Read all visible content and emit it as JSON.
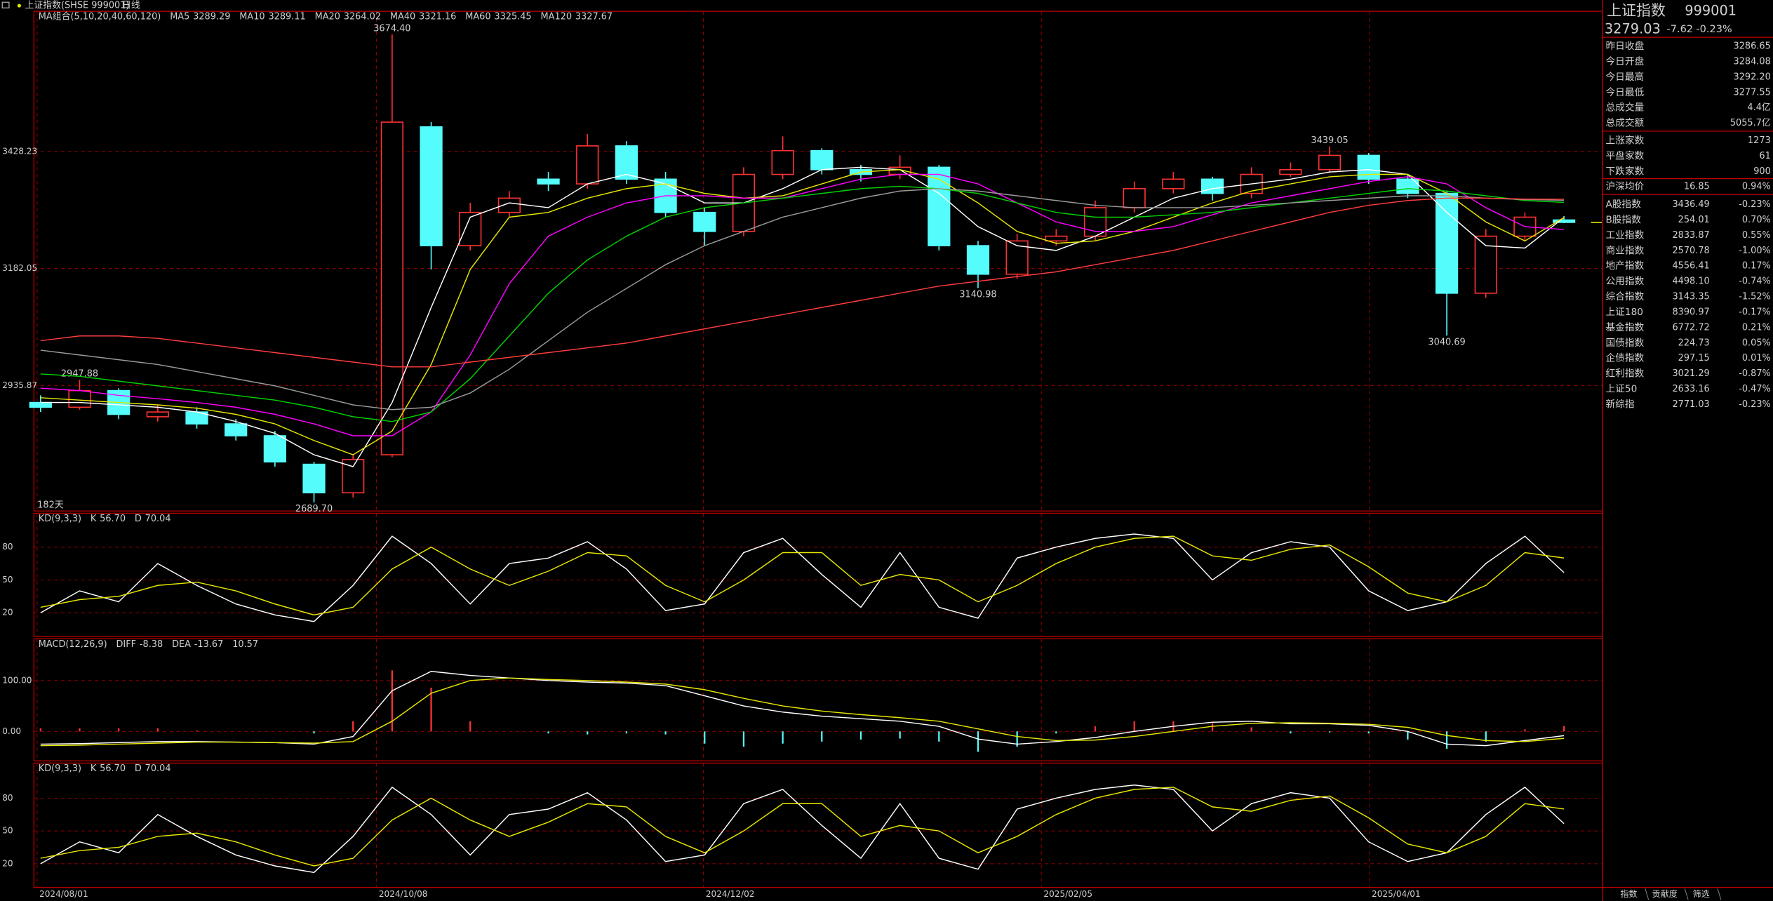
{
  "toolbar": {
    "symbol": "上证指数(SHSE 999001)",
    "period": "日线"
  },
  "chart_data": [
    {
      "type": "candlestick",
      "legend_title": "MA组合(5,10,20,40,60,120)",
      "days_label": "182天",
      "xlim": [
        -0.17,
        39.98
      ],
      "xticks": [
        {
          "value": -0.09,
          "label": "2024/08/01"
        },
        {
          "value": 8.6,
          "label": "2024/10/08"
        },
        {
          "value": 16.97,
          "label": "2024/12/02"
        },
        {
          "value": 25.62,
          "label": "2025/02/05"
        },
        {
          "value": 34.02,
          "label": "2025/04/01"
        }
      ],
      "ylim": [
        2671.7,
        3723.2
      ],
      "yticks": [
        2935.87,
        3182.05,
        3428.23
      ],
      "grid": true,
      "up_color": "#ff3232",
      "down_color": "#54fcfc",
      "open": [
        2900,
        2890,
        2925,
        2870,
        2880,
        2855,
        2830,
        2770,
        2710,
        2790,
        3480,
        3230,
        3300,
        3370,
        3360,
        3440,
        3370,
        3300,
        3260,
        3380,
        3430,
        3390,
        3380,
        3395,
        3230,
        3170,
        3240,
        3250,
        3310,
        3350,
        3370,
        3340,
        3380,
        3390,
        3420,
        3370,
        3340,
        3130,
        3250,
        3284.08
      ],
      "high": [
        2915,
        2947.88,
        2930,
        2895,
        2890,
        2865,
        2840,
        2775,
        2790,
        3674.4,
        3490,
        3320,
        3345,
        3385,
        3465,
        3450,
        3385,
        3310,
        3395,
        3460,
        3435,
        3400,
        3420,
        3400,
        3240,
        3255,
        3265,
        3325,
        3365,
        3385,
        3375,
        3395,
        3405,
        3439.05,
        3425,
        3380,
        3345,
        3265,
        3300,
        3292.2
      ],
      "low": [
        2880,
        2885,
        2865,
        2860,
        2845,
        2820,
        2765,
        2689.7,
        2700,
        2785,
        3180,
        3220,
        3290,
        3345,
        3350,
        3360,
        3290,
        3230,
        3250,
        3370,
        3380,
        3365,
        3370,
        3220,
        3140.98,
        3160,
        3230,
        3240,
        3300,
        3340,
        3325,
        3330,
        3375,
        3385,
        3360,
        3330,
        3040.69,
        3120,
        3240,
        3277.55
      ],
      "close": [
        2890,
        2925,
        2875,
        2880,
        2855,
        2830,
        2775,
        2710,
        2780,
        3490,
        3230,
        3300,
        3330,
        3360,
        3440,
        3370,
        3300,
        3260,
        3380,
        3430,
        3390,
        3380,
        3395,
        3230,
        3170,
        3240,
        3250,
        3310,
        3350,
        3370,
        3340,
        3380,
        3390,
        3420,
        3370,
        3340,
        3130,
        3250,
        3290,
        3279.03
      ],
      "high_labels": [
        null,
        "2947.88",
        null,
        null,
        null,
        null,
        null,
        null,
        null,
        "3674.40",
        null,
        null,
        null,
        null,
        null,
        null,
        null,
        null,
        null,
        null,
        null,
        null,
        null,
        null,
        null,
        null,
        null,
        null,
        null,
        null,
        null,
        null,
        null,
        "3439.05",
        null,
        null,
        null,
        null,
        null,
        null
      ],
      "low_labels": [
        null,
        null,
        null,
        null,
        null,
        null,
        null,
        "2689.70",
        null,
        null,
        null,
        null,
        null,
        null,
        null,
        null,
        null,
        null,
        null,
        null,
        null,
        null,
        null,
        null,
        "3140.98",
        null,
        null,
        null,
        null,
        null,
        null,
        null,
        null,
        null,
        null,
        null,
        "3040.69",
        null,
        null,
        null
      ],
      "series": [
        {
          "name": "MA5",
          "label": "3289.29",
          "color": "#ffffff",
          "values": [
            2900,
            2900,
            2895,
            2890,
            2880,
            2860,
            2835,
            2790,
            2765,
            2900,
            3100,
            3290,
            3320,
            3310,
            3360,
            3380,
            3360,
            3320,
            3320,
            3350,
            3390,
            3395,
            3390,
            3340,
            3270,
            3230,
            3220,
            3250,
            3290,
            3330,
            3350,
            3360,
            3370,
            3385,
            3390,
            3380,
            3300,
            3230,
            3225,
            3289.29
          ]
        },
        {
          "name": "MA10",
          "label": "3289.11",
          "color": "#e6e600",
          "values": [
            2910,
            2905,
            2900,
            2895,
            2888,
            2875,
            2855,
            2820,
            2790,
            2840,
            2980,
            3180,
            3290,
            3300,
            3330,
            3350,
            3360,
            3340,
            3330,
            3335,
            3360,
            3385,
            3390,
            3370,
            3320,
            3260,
            3235,
            3240,
            3260,
            3290,
            3320,
            3345,
            3360,
            3375,
            3380,
            3380,
            3340,
            3280,
            3240,
            3289.11
          ]
        },
        {
          "name": "MA20",
          "label": "3264.02",
          "color": "#ff00ff",
          "values": [
            2930,
            2925,
            2915,
            2908,
            2900,
            2890,
            2875,
            2855,
            2830,
            2830,
            2880,
            3000,
            3150,
            3250,
            3290,
            3320,
            3335,
            3335,
            3330,
            3330,
            3350,
            3370,
            3380,
            3380,
            3360,
            3320,
            3280,
            3260,
            3260,
            3270,
            3295,
            3320,
            3335,
            3350,
            3365,
            3375,
            3360,
            3310,
            3270,
            3264.02
          ]
        },
        {
          "name": "MA40",
          "label": "3321.16",
          "color": "#00d200",
          "values": [
            2960,
            2955,
            2945,
            2935,
            2925,
            2915,
            2905,
            2890,
            2870,
            2860,
            2880,
            2950,
            3040,
            3130,
            3200,
            3250,
            3290,
            3310,
            3320,
            3330,
            3340,
            3350,
            3355,
            3350,
            3340,
            3320,
            3300,
            3290,
            3290,
            3295,
            3300,
            3310,
            3320,
            3330,
            3340,
            3350,
            3345,
            3335,
            3325,
            3321.16
          ]
        },
        {
          "name": "MA60",
          "label": "3325.45",
          "color": "#9a9a9a",
          "values": [
            3010,
            3000,
            2990,
            2980,
            2965,
            2950,
            2935,
            2915,
            2895,
            2885,
            2890,
            2920,
            2970,
            3030,
            3090,
            3140,
            3190,
            3230,
            3260,
            3290,
            3310,
            3330,
            3345,
            3350,
            3345,
            3335,
            3325,
            3315,
            3310,
            3310,
            3310,
            3315,
            3320,
            3325,
            3330,
            3335,
            3335,
            3330,
            3327,
            3325.45
          ]
        },
        {
          "name": "MA120",
          "label": "3327.67",
          "color": "#ff3c3c",
          "values": [
            3030,
            3040,
            3040,
            3035,
            3025,
            3015,
            3005,
            2995,
            2985,
            2975,
            2975,
            2985,
            2995,
            3005,
            3015,
            3025,
            3040,
            3055,
            3070,
            3085,
            3100,
            3115,
            3130,
            3145,
            3155,
            3165,
            3175,
            3190,
            3205,
            3220,
            3240,
            3260,
            3280,
            3300,
            3315,
            3325,
            3330,
            3330,
            3328,
            3327.67
          ]
        }
      ]
    },
    {
      "type": "kd",
      "title": "KD(9,3,3)",
      "xlim": [
        -0.17,
        39.98
      ],
      "ylim": [
        -1.7,
        111
      ],
      "yticks": [
        20,
        50,
        80
      ],
      "grid": true,
      "series": [
        {
          "name": "K",
          "label": "56.70",
          "color": "#ffffff",
          "values": [
            20,
            40,
            30,
            65,
            45,
            28,
            18,
            12,
            45,
            90,
            65,
            28,
            65,
            70,
            85,
            60,
            22,
            28,
            75,
            88,
            55,
            25,
            75,
            25,
            15,
            70,
            80,
            88,
            92,
            88,
            50,
            75,
            85,
            80,
            40,
            22,
            30,
            65,
            90,
            56.7
          ]
        },
        {
          "name": "D",
          "label": "70.04",
          "color": "#e6e600",
          "values": [
            25,
            32,
            35,
            45,
            48,
            40,
            28,
            18,
            25,
            60,
            80,
            60,
            45,
            58,
            75,
            72,
            45,
            30,
            50,
            75,
            75,
            45,
            55,
            50,
            30,
            45,
            65,
            80,
            88,
            90,
            72,
            68,
            78,
            82,
            62,
            38,
            30,
            45,
            75,
            70.04
          ]
        }
      ]
    },
    {
      "type": "macd",
      "title": "MACD(12,26,9)",
      "xlim": [
        -0.17,
        39.98
      ],
      "ylim": [
        -57.8,
        182.2
      ],
      "yticks": [
        {
          "value": 0,
          "label": "0.00"
        },
        {
          "value": 100,
          "label": "100.00"
        }
      ],
      "grid": true,
      "series": [
        {
          "name": "DIFF",
          "label": "-8.38",
          "color": "#ffffff",
          "values": [
            -25,
            -24,
            -22,
            -20,
            -20,
            -21,
            -22,
            -25,
            -10,
            80,
            118,
            110,
            105,
            100,
            97,
            95,
            90,
            70,
            50,
            38,
            30,
            25,
            20,
            10,
            -15,
            -25,
            -20,
            -12,
            0,
            10,
            18,
            20,
            15,
            15,
            12,
            0,
            -25,
            -28,
            -18,
            -8.38
          ]
        },
        {
          "name": "DEA",
          "label": "-13.67",
          "color": "#e6e600",
          "values": [
            -28,
            -27,
            -25,
            -23,
            -21,
            -21,
            -22,
            -23,
            -20,
            20,
            75,
            100,
            105,
            102,
            100,
            97,
            93,
            82,
            65,
            50,
            40,
            33,
            27,
            20,
            5,
            -10,
            -18,
            -17,
            -10,
            0,
            10,
            16,
            17,
            16,
            14,
            8,
            -8,
            -18,
            -20,
            -13.67
          ]
        }
      ],
      "histogram": {
        "label": "10.57",
        "up_color": "#ff3232",
        "down_color": "#54fcfc",
        "values": [
          6,
          6,
          6,
          6,
          2,
          0,
          0,
          -4,
          20,
          120,
          86,
          20,
          0,
          -4,
          -6,
          -4,
          -6,
          -24,
          -30,
          -24,
          -20,
          -16,
          -14,
          -20,
          -40,
          -30,
          -4,
          10,
          20,
          20,
          16,
          8,
          -4,
          -2,
          -4,
          -16,
          -34,
          -20,
          4,
          10.57
        ]
      }
    },
    {
      "type": "kd",
      "title": "KD(9,3,3)",
      "xlim": [
        -0.17,
        39.98
      ],
      "ylim": [
        -1.7,
        112.1
      ],
      "yticks": [
        20,
        50,
        80
      ],
      "grid": true,
      "series": [
        {
          "name": "K",
          "label": "56.70",
          "color": "#ffffff",
          "values": [
            20,
            40,
            30,
            65,
            45,
            28,
            18,
            12,
            45,
            90,
            65,
            28,
            65,
            70,
            85,
            60,
            22,
            28,
            75,
            88,
            55,
            25,
            75,
            25,
            15,
            70,
            80,
            88,
            92,
            88,
            50,
            75,
            85,
            80,
            40,
            22,
            30,
            65,
            90,
            56.7
          ]
        },
        {
          "name": "D",
          "label": "70.04",
          "color": "#e6e600",
          "values": [
            25,
            32,
            35,
            45,
            48,
            40,
            28,
            18,
            25,
            60,
            80,
            60,
            45,
            58,
            75,
            72,
            45,
            30,
            50,
            75,
            75,
            45,
            55,
            50,
            30,
            45,
            65,
            80,
            88,
            90,
            72,
            68,
            78,
            82,
            62,
            38,
            30,
            45,
            75,
            70.04
          ]
        }
      ]
    }
  ],
  "quote": {
    "name": "上证指数",
    "code": "999001",
    "price": 3279.03,
    "change": -7.62,
    "change_pct": "-0.23%",
    "stats": [
      {
        "label": "昨日收盘",
        "value": "3286.65",
        "color": "#ffffff"
      },
      {
        "label": "今日开盘",
        "value": "3284.08",
        "color": "#00e000"
      },
      {
        "label": "今日最高",
        "value": "3292.20",
        "color": "#ff3232"
      },
      {
        "label": "今日最低",
        "value": "3277.55",
        "color": "#00e000"
      },
      {
        "label": "总成交量",
        "value": "4.4亿",
        "color": "#e6e600"
      },
      {
        "label": "总成交额",
        "value": "5055.7亿",
        "color": "#e6e600"
      }
    ],
    "breadth": [
      {
        "label": "上涨家数",
        "value": "1273"
      },
      {
        "label": "平盘家数",
        "value": "61"
      },
      {
        "label": "下跌家数",
        "value": "900"
      }
    ],
    "avg": {
      "label": "沪深均价",
      "value": "16.85",
      "change": "0.94%"
    },
    "indices": [
      {
        "name": "A股指数",
        "value": "3436.49",
        "change": "-0.23%"
      },
      {
        "name": "B股指数",
        "value": "254.01",
        "change": "0.70%"
      },
      {
        "name": "工业指数",
        "value": "2833.87",
        "change": "0.55%"
      },
      {
        "name": "商业指数",
        "value": "2570.78",
        "change": "-1.00%"
      },
      {
        "name": "地产指数",
        "value": "4556.41",
        "change": "0.17%"
      },
      {
        "name": "公用指数",
        "value": "4498.10",
        "change": "-0.74%"
      },
      {
        "name": "综合指数",
        "value": "3143.35",
        "change": "-1.52%"
      },
      {
        "name": "上证180",
        "value": "8390.97",
        "change": "-0.17%"
      },
      {
        "name": "基金指数",
        "value": "6772.72",
        "change": "0.21%"
      },
      {
        "name": "国债指数",
        "value": "224.73",
        "change": "0.05%"
      },
      {
        "name": "企债指数",
        "value": "297.15",
        "change": "0.01%"
      },
      {
        "name": "红利指数",
        "value": "3021.29",
        "change": "-0.87%"
      },
      {
        "name": "上证50",
        "value": "2633.16",
        "change": "-0.47%"
      },
      {
        "name": "新综指",
        "value": "2771.03",
        "change": "-0.23%"
      }
    ]
  },
  "tabs": [
    "指数",
    "贡献度",
    "筛选"
  ]
}
